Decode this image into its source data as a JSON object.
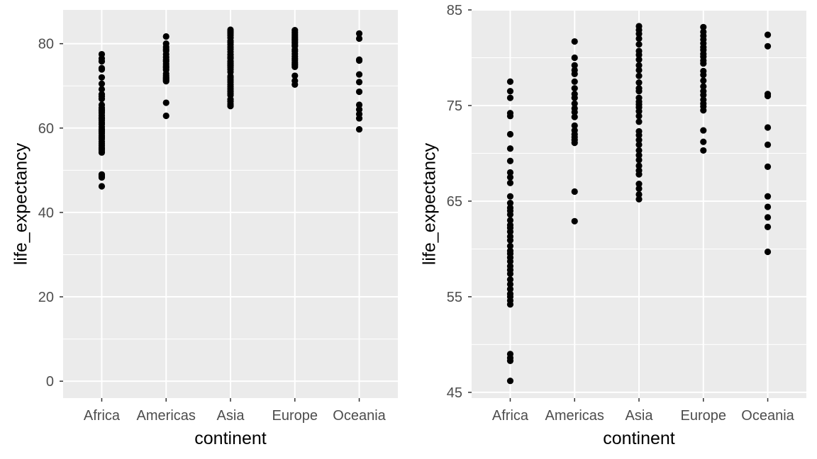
{
  "chart_data": [
    {
      "type": "scatter",
      "title": "",
      "xlabel": "continent",
      "ylabel": "life_expectancy",
      "categories": [
        "Africa",
        "Americas",
        "Asia",
        "Europe",
        "Oceania"
      ],
      "ylim": [
        -4,
        88
      ],
      "yticks": [
        0,
        20,
        40,
        60,
        80
      ],
      "grid": true,
      "legend": "none",
      "colors": {
        "panel": "#ebebeb",
        "grid": "#ffffff",
        "point": "#000000"
      },
      "series": [
        {
          "category": "Africa",
          "values": [
            77.5,
            76.5,
            75.8,
            74.2,
            73.9,
            72.0,
            70.5,
            69.2,
            68.0,
            67.5,
            66.9,
            65.5,
            64.8,
            64.3,
            64.0,
            63.6,
            63.0,
            62.5,
            62.2,
            61.8,
            61.3,
            60.9,
            60.3,
            59.8,
            59.5,
            59.1,
            58.7,
            58.2,
            57.8,
            57.4,
            56.8,
            56.3,
            55.8,
            55.3,
            55.0,
            54.6,
            54.2,
            49.0,
            48.6,
            48.3,
            46.2
          ]
        },
        {
          "category": "Americas",
          "values": [
            81.7,
            80.0,
            79.2,
            78.7,
            78.3,
            77.5,
            76.8,
            76.2,
            75.8,
            75.2,
            74.7,
            74.3,
            73.8,
            72.9,
            72.4,
            72.0,
            71.7,
            71.4,
            71.1,
            66.0,
            62.9
          ]
        },
        {
          "category": "Asia",
          "values": [
            83.3,
            82.9,
            82.5,
            82.0,
            81.4,
            80.7,
            80.3,
            79.8,
            79.2,
            78.7,
            78.1,
            77.4,
            76.8,
            76.5,
            75.8,
            75.4,
            75.1,
            74.8,
            74.4,
            73.9,
            73.3,
            72.3,
            71.9,
            71.4,
            70.9,
            70.3,
            69.8,
            69.3,
            68.7,
            68.2,
            67.8,
            66.8,
            66.3,
            65.7,
            65.2
          ]
        },
        {
          "category": "Europe",
          "values": [
            83.2,
            82.7,
            82.3,
            81.9,
            81.5,
            81.1,
            80.8,
            80.4,
            80.1,
            79.7,
            79.4,
            78.6,
            78.2,
            77.6,
            77.0,
            76.5,
            76.1,
            75.6,
            75.2,
            74.9,
            74.5,
            72.4,
            71.2,
            70.3
          ]
        },
        {
          "category": "Oceania",
          "values": [
            82.4,
            81.2,
            76.2,
            76.0,
            72.7,
            70.9,
            68.6,
            65.5,
            64.4,
            63.3,
            62.3,
            59.7
          ]
        }
      ]
    },
    {
      "type": "scatter",
      "title": "",
      "xlabel": "continent",
      "ylabel": "life_expectancy",
      "categories": [
        "Africa",
        "Americas",
        "Asia",
        "Europe",
        "Oceania"
      ],
      "ylim": [
        44.4,
        85.0
      ],
      "yticks": [
        45,
        55,
        65,
        75,
        85
      ],
      "grid": true,
      "legend": "none",
      "colors": {
        "panel": "#ebebeb",
        "grid": "#ffffff",
        "point": "#000000"
      },
      "series": [
        {
          "category": "Africa",
          "values": [
            77.5,
            76.5,
            75.8,
            74.2,
            73.9,
            72.0,
            70.5,
            69.2,
            68.0,
            67.5,
            66.9,
            65.5,
            64.8,
            64.3,
            64.0,
            63.6,
            63.0,
            62.5,
            62.2,
            61.8,
            61.3,
            60.9,
            60.3,
            59.8,
            59.5,
            59.1,
            58.7,
            58.2,
            57.8,
            57.4,
            56.8,
            56.3,
            55.8,
            55.3,
            55.0,
            54.6,
            54.2,
            49.0,
            48.6,
            48.3,
            46.2
          ]
        },
        {
          "category": "Americas",
          "values": [
            81.7,
            80.0,
            79.2,
            78.7,
            78.3,
            77.5,
            76.8,
            76.2,
            75.8,
            75.2,
            74.7,
            74.3,
            73.8,
            72.9,
            72.4,
            72.0,
            71.7,
            71.4,
            71.1,
            66.0,
            62.9
          ]
        },
        {
          "category": "Asia",
          "values": [
            83.3,
            82.9,
            82.5,
            82.0,
            81.4,
            80.7,
            80.3,
            79.8,
            79.2,
            78.7,
            78.1,
            77.4,
            76.8,
            76.5,
            75.8,
            75.4,
            75.1,
            74.8,
            74.4,
            73.9,
            73.3,
            72.3,
            71.9,
            71.4,
            70.9,
            70.3,
            69.8,
            69.3,
            68.7,
            68.2,
            67.8,
            66.8,
            66.3,
            65.7,
            65.2
          ]
        },
        {
          "category": "Europe",
          "values": [
            83.2,
            82.7,
            82.3,
            81.9,
            81.5,
            81.1,
            80.8,
            80.4,
            80.1,
            79.7,
            79.4,
            78.6,
            78.2,
            77.6,
            77.0,
            76.5,
            76.1,
            75.6,
            75.2,
            74.9,
            74.5,
            72.4,
            71.2,
            70.3
          ]
        },
        {
          "category": "Oceania",
          "values": [
            82.4,
            81.2,
            76.2,
            76.0,
            72.7,
            70.9,
            68.6,
            65.5,
            64.4,
            63.3,
            62.3,
            59.7
          ]
        }
      ]
    }
  ]
}
